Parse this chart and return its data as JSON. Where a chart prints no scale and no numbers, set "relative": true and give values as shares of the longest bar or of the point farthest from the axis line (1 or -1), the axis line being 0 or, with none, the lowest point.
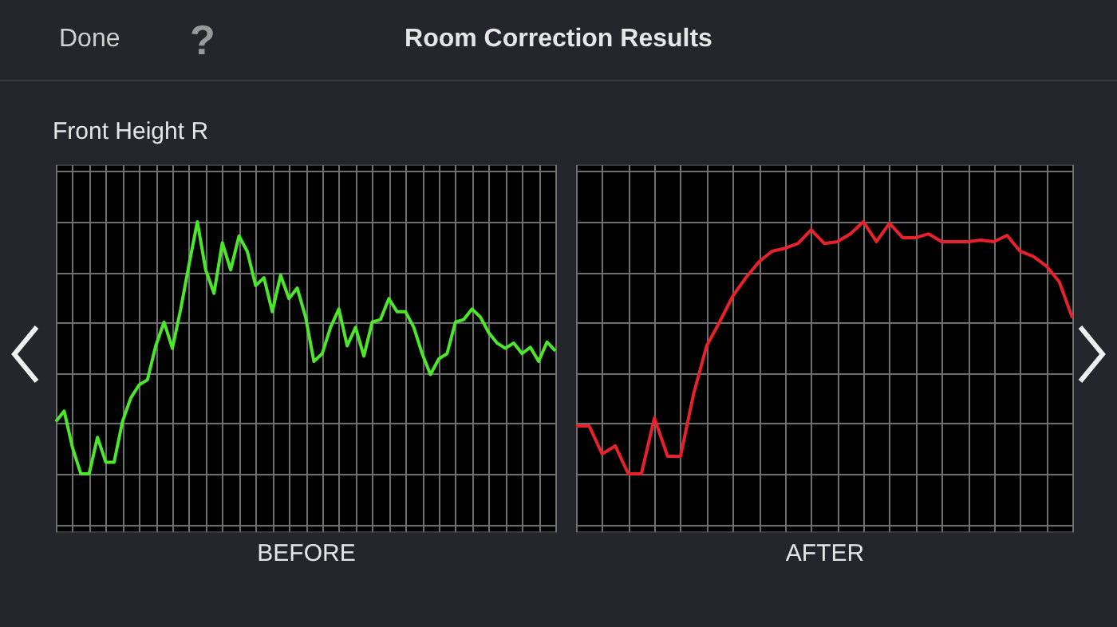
{
  "chart_data": [
    {
      "type": "line",
      "title": "Room Correction Results",
      "subtitle": "Front Height R",
      "annotations": [
        "Done",
        "?"
      ],
      "xlabel": "BEFORE",
      "relative": true,
      "grid": true,
      "categories": [
        null,
        null,
        null,
        null,
        null,
        null,
        null,
        null,
        null,
        null,
        null,
        null,
        null,
        null,
        null,
        null,
        null,
        null,
        null,
        null,
        null,
        null,
        null,
        null,
        null,
        null,
        null,
        null,
        null,
        null,
        null,
        null,
        null,
        null,
        null,
        null,
        null,
        null,
        null,
        null,
        null,
        null,
        null,
        null,
        null,
        null,
        null,
        null,
        null,
        null,
        null,
        null,
        null,
        null,
        null,
        null,
        null,
        null,
        null,
        null,
        null
      ],
      "series": [
        {
          "color": "#4ce62a",
          "values": [
            0.207,
            0.249,
            0.104,
            0,
            0,
            0.145,
            0.046,
            0.046,
            0.207,
            0.301,
            0.353,
            0.373,
            0.508,
            0.602,
            0.498,
            0.654,
            0.83,
            1,
            0.809,
            0.716,
            0.917,
            0.809,
            0.944,
            0.882,
            0.747,
            0.778,
            0.643,
            0.788,
            0.695,
            0.737,
            0.622,
            0.446,
            0.477,
            0.581,
            0.654,
            0.508,
            0.581,
            0.467,
            0.602,
            0.612,
            0.695,
            0.643,
            0.643,
            0.581,
            0.477,
            0.394,
            0.456,
            0.477,
            0.602,
            0.612,
            0.654,
            0.622,
            0.56,
            0.519,
            0.498,
            0.519,
            0.477,
            0.502,
            0.446,
            0.523,
            0.488
          ]
        }
      ]
    },
    {
      "type": "line",
      "xlabel": "AFTER",
      "relative": true,
      "grid": true,
      "categories": [
        null,
        null,
        null,
        null,
        null,
        null,
        null,
        null,
        null,
        null,
        null,
        null,
        null,
        null,
        null,
        null,
        null,
        null,
        null,
        null,
        null,
        null,
        null,
        null,
        null,
        null,
        null,
        null,
        null,
        null,
        null,
        null,
        null,
        null,
        null,
        null,
        null,
        null,
        null
      ],
      "series": [
        {
          "color": "#e8212b",
          "values": [
            0.19,
            0.19,
            0.079,
            0.111,
            0,
            0,
            0.222,
            0.07,
            0.07,
            0.317,
            0.508,
            0.603,
            0.705,
            0.778,
            0.841,
            0.883,
            0.895,
            0.914,
            0.968,
            0.914,
            0.921,
            0.952,
            1,
            0.921,
            0.994,
            0.937,
            0.937,
            0.952,
            0.921,
            0.921,
            0.921,
            0.927,
            0.921,
            0.946,
            0.883,
            0.863,
            0.825,
            0.762,
            0.619
          ]
        }
      ]
    }
  ]
}
